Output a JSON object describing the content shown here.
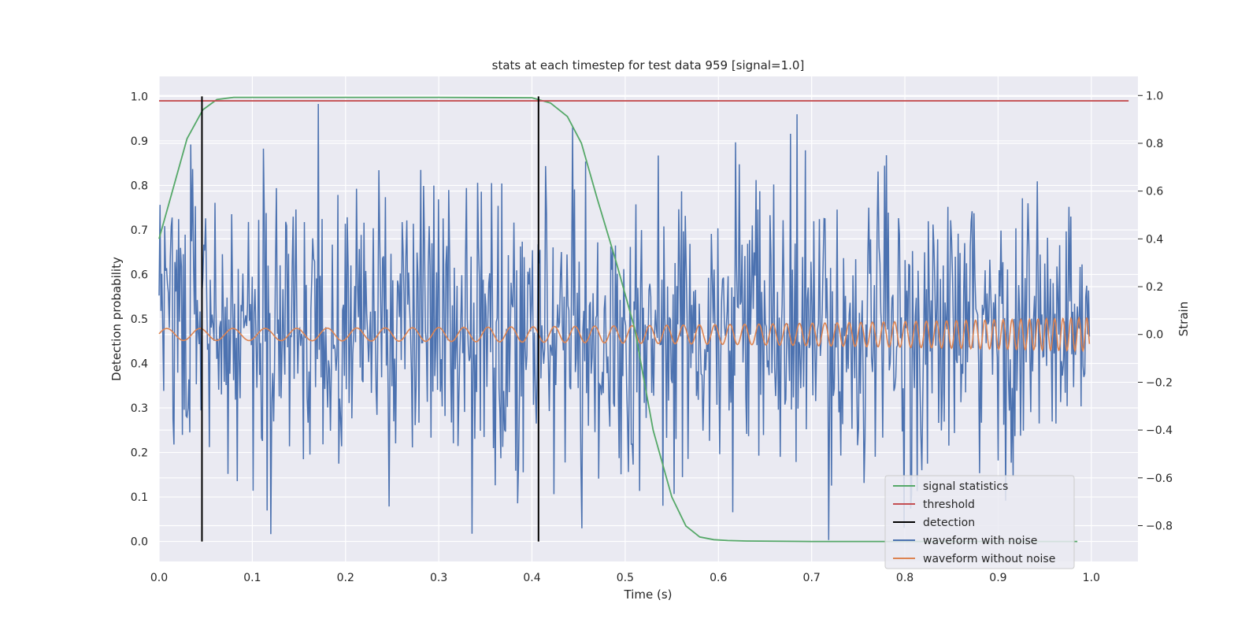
{
  "chart_data": {
    "type": "line",
    "title": "stats at each timestep for test data 959 [signal=1.0]",
    "xlabel": "Time (s)",
    "ylabel_left": "Detection probability",
    "ylabel_right": "Strain",
    "xlim": [
      0.0,
      1.05
    ],
    "ylim_left": [
      -0.045,
      1.045
    ],
    "ylim_right": [
      -0.95,
      1.08
    ],
    "x_ticks": [
      0.0,
      0.1,
      0.2,
      0.3,
      0.4,
      0.5,
      0.6,
      0.7,
      0.8,
      0.9,
      1.0
    ],
    "x_tick_labels": [
      "0.0",
      "0.1",
      "0.2",
      "0.3",
      "0.4",
      "0.5",
      "0.6",
      "0.7",
      "0.8",
      "0.9",
      "1.0"
    ],
    "y_left_ticks": [
      0.0,
      0.1,
      0.2,
      0.3,
      0.4,
      0.5,
      0.6,
      0.7,
      0.8,
      0.9,
      1.0
    ],
    "y_left_tick_labels": [
      "0.0",
      "0.1",
      "0.2",
      "0.3",
      "0.4",
      "0.5",
      "0.6",
      "0.7",
      "0.8",
      "0.9",
      "1.0"
    ],
    "y_right_ticks": [
      -0.8,
      -0.6,
      -0.4,
      -0.2,
      0.0,
      0.2,
      0.4,
      0.6,
      0.8,
      1.0
    ],
    "y_right_tick_labels": [
      "−0.8",
      "−0.6",
      "−0.4",
      "−0.2",
      "0.0",
      "0.2",
      "0.4",
      "0.6",
      "0.8",
      "1.0"
    ],
    "grid": true,
    "legend_position": "lower-right",
    "colors": {
      "plot_bg": "#eaeaf2",
      "grid": "#ffffff",
      "signal_statistics": "#55a868",
      "threshold": "#c44e52",
      "detection": "#000000",
      "noisy": "#4c72b0",
      "clean": "#dd8452"
    },
    "signal_statistics": {
      "name": "signal statistics",
      "x": [
        0.0,
        0.03,
        0.047,
        0.062,
        0.08,
        0.1,
        0.2,
        0.3,
        0.4,
        0.42,
        0.438,
        0.453,
        0.47,
        0.49,
        0.51,
        0.53,
        0.55,
        0.565,
        0.58,
        0.595,
        0.61,
        0.63,
        0.7,
        0.8,
        0.9,
        0.985
      ],
      "y": [
        0.68,
        0.905,
        0.97,
        0.993,
        0.998,
        0.998,
        0.998,
        0.998,
        0.997,
        0.985,
        0.955,
        0.895,
        0.77,
        0.63,
        0.48,
        0.25,
        0.1,
        0.035,
        0.01,
        0.004,
        0.002,
        0.001,
        0.0,
        0.0,
        0.0,
        0.0
      ]
    },
    "threshold": {
      "name": "threshold",
      "value": 0.99,
      "x_range": [
        0.0,
        1.04
      ]
    },
    "detections": {
      "name": "detection",
      "x": [
        0.046,
        0.407
      ],
      "y_range": [
        0.0,
        1.0
      ]
    },
    "noisy_waveform": {
      "name": "waveform with noise",
      "x_range": [
        0.0,
        0.998
      ],
      "n_points": 1000,
      "y_min": -0.86,
      "y_max": 1.0,
      "std": 0.3
    },
    "clean_waveform": {
      "name": "waveform without noise",
      "x_range": [
        0.0,
        0.998
      ],
      "amp_start": 0.025,
      "amp_end": 0.07,
      "freq_start": 28,
      "freq_end": 120
    },
    "legend": [
      "signal statistics",
      "threshold",
      "detection",
      "waveform with noise",
      "waveform without noise"
    ]
  }
}
